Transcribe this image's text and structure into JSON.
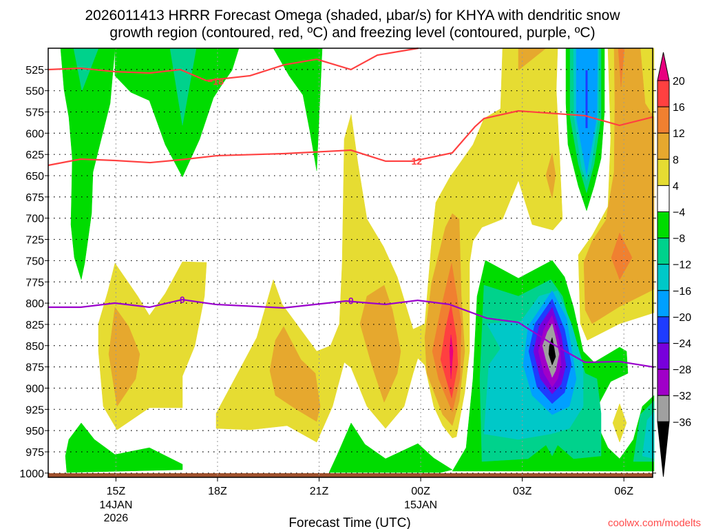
{
  "chart_data": {
    "type": "contour",
    "title_lines": [
      "2026011413 HRRR Forecast Omega (shaded, µbar/s) for KHYA with dendritic snow",
      "growth region (contoured, red, ºC) and freezing level (contoured, purple, ºC)"
    ],
    "xlabel": "Forecast Time (UTC)",
    "ylabel": "",
    "x_range_hours_from_14jan_00z": [
      13,
      30.85
    ],
    "y_range_hpa": [
      500,
      1005
    ],
    "y_inverted": true,
    "y_ticks": [
      525,
      550,
      575,
      600,
      625,
      650,
      675,
      700,
      725,
      750,
      775,
      800,
      825,
      850,
      875,
      900,
      925,
      950,
      975,
      1000
    ],
    "x_ticks": [
      {
        "hour": 15,
        "label": "15Z",
        "sub": [
          "14JAN",
          "2026"
        ]
      },
      {
        "hour": 18,
        "label": "18Z",
        "sub": []
      },
      {
        "hour": 21,
        "label": "21Z",
        "sub": []
      },
      {
        "hour": 24,
        "label": "00Z",
        "sub": [
          "15JAN"
        ]
      },
      {
        "hour": 27,
        "label": "03Z",
        "sub": []
      },
      {
        "hour": 30,
        "label": "06Z",
        "sub": []
      }
    ],
    "grid": true,
    "colorbar": {
      "labels": [
        "20",
        "16",
        "12",
        "8",
        "4",
        "−4",
        "−8",
        "−12",
        "−16",
        "−20",
        "−24",
        "−28",
        "−32",
        "−36"
      ],
      "colors": [
        "#ff4040",
        "#f08030",
        "#e6a82e",
        "#e6dc32",
        "#ffffff",
        "#00dc00",
        "#00d28c",
        "#00c8c8",
        "#00a0ff",
        "#1e3cff",
        "#7800dc",
        "#a000c8",
        "#a0a0a0"
      ],
      "over_color": "#e8007f",
      "under_color": "#000000"
    },
    "shading_colors": {
      "Y": "#e6dc32",
      "O": "#e6a82e",
      "O2": "#f08030",
      "R": "#ff4040",
      "M": "#e8007f",
      "G": "#00dc00",
      "T": "#00d28c",
      "C": "#00c8c8",
      "B": "#00a0ff",
      "DB": "#1e3cff",
      "P": "#7800dc",
      "V": "#a000c8",
      "GR": "#a0a0a0",
      "K": "#000000"
    },
    "contours": [
      {
        "name": "dgz-minus18",
        "label": "−18",
        "color": "#ff4040",
        "label_at": [
          17.94,
          539
        ],
        "points": [
          [
            13.0,
            525.1
          ],
          [
            13.96,
            523.5
          ],
          [
            14.97,
            527.6
          ],
          [
            16.0,
            529.2
          ],
          [
            16.9,
            525.1
          ],
          [
            17.67,
            538.1
          ],
          [
            18.96,
            532.4
          ],
          [
            19.97,
            519.5
          ],
          [
            20.93,
            513
          ],
          [
            21.94,
            525.1
          ],
          [
            22.72,
            508.1
          ],
          [
            23.93,
            500
          ]
        ]
      },
      {
        "name": "dgz-minus12",
        "label": "−12",
        "color": "#ff4040",
        "label_at": [
          23.8,
          633
        ],
        "points": [
          [
            13.0,
            637.8
          ],
          [
            13.96,
            630.5
          ],
          [
            14.97,
            632.1
          ],
          [
            16.01,
            634.6
          ],
          [
            16.9,
            631.3
          ],
          [
            18.0,
            626.4
          ],
          [
            19.97,
            624
          ],
          [
            21.94,
            620
          ],
          [
            22.96,
            632.9
          ],
          [
            23.77,
            632.9
          ],
          [
            24.93,
            623.2
          ],
          [
            25.6,
            592.4
          ],
          [
            25.87,
            582.7
          ],
          [
            26.88,
            573.8
          ],
          [
            28.85,
            579.4
          ],
          [
            29.87,
            590.8
          ],
          [
            30.85,
            581
          ]
        ]
      },
      {
        "name": "freezing-level",
        "label": "0",
        "color": "#9a00cc",
        "label_at": [
          16.96,
          796
        ],
        "label_at2": [
          21.94,
          797
        ],
        "points": [
          [
            13.0,
            804.8
          ],
          [
            13.96,
            804.8
          ],
          [
            14.97,
            799.9
          ],
          [
            15.99,
            804.8
          ],
          [
            16.96,
            795.9
          ],
          [
            17.94,
            801.5
          ],
          [
            19.95,
            805.6
          ],
          [
            21.8,
            797.5
          ],
          [
            22.96,
            801.5
          ],
          [
            23.91,
            796.7
          ],
          [
            24.85,
            801.5
          ],
          [
            25.95,
            817.7
          ],
          [
            26.88,
            822.6
          ],
          [
            27.84,
            846.9
          ],
          [
            28.85,
            869.6
          ],
          [
            29.87,
            868.8
          ],
          [
            30.89,
            875.3
          ]
        ]
      }
    ],
    "ground_color": "#a0522d"
  },
  "watermark": "coolwx.com/modelts"
}
